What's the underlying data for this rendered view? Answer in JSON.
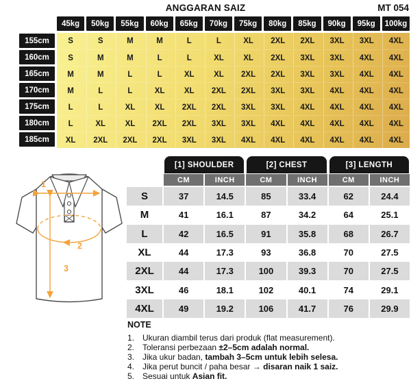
{
  "header": {
    "title": "ANGGARAN SAIZ",
    "code": "MT 054"
  },
  "colors": {
    "black_cell": "#161616",
    "gold_light": "#f9f192",
    "gold_dark": "#dcab4b",
    "unit_header_gray": "#707070",
    "row_shade_gray": "#dbdbdb",
    "annotation_orange": "#f2a33c"
  },
  "size_matrix": {
    "weight_headers": [
      "45kg",
      "50kg",
      "55kg",
      "60kg",
      "65kg",
      "70kg",
      "75kg",
      "80kg",
      "85kg",
      "90kg",
      "95kg",
      "100kg"
    ],
    "rows": [
      {
        "height": "155cm",
        "sizes": [
          "S",
          "S",
          "M",
          "M",
          "L",
          "L",
          "XL",
          "2XL",
          "2XL",
          "3XL",
          "3XL",
          "4XL"
        ]
      },
      {
        "height": "160cm",
        "sizes": [
          "S",
          "M",
          "M",
          "L",
          "L",
          "XL",
          "XL",
          "2XL",
          "3XL",
          "3XL",
          "4XL",
          "4XL"
        ]
      },
      {
        "height": "165cm",
        "sizes": [
          "M",
          "M",
          "L",
          "L",
          "XL",
          "XL",
          "2XL",
          "2XL",
          "3XL",
          "3XL",
          "4XL",
          "4XL"
        ]
      },
      {
        "height": "170cm",
        "sizes": [
          "M",
          "L",
          "L",
          "XL",
          "XL",
          "2XL",
          "2XL",
          "3XL",
          "3XL",
          "4XL",
          "4XL",
          "4XL"
        ]
      },
      {
        "height": "175cm",
        "sizes": [
          "L",
          "L",
          "XL",
          "XL",
          "2XL",
          "2XL",
          "3XL",
          "3XL",
          "4XL",
          "4XL",
          "4XL",
          "4XL"
        ]
      },
      {
        "height": "180cm",
        "sizes": [
          "L",
          "XL",
          "XL",
          "2XL",
          "2XL",
          "3XL",
          "3XL",
          "4XL",
          "4XL",
          "4XL",
          "4XL",
          "4XL"
        ]
      },
      {
        "height": "185cm",
        "sizes": [
          "XL",
          "2XL",
          "2XL",
          "2XL",
          "3XL",
          "3XL",
          "4XL",
          "4XL",
          "4XL",
          "4XL",
          "4XL",
          "4XL"
        ]
      }
    ]
  },
  "measurement_table": {
    "groups": [
      {
        "label": "[1] SHOULDER"
      },
      {
        "label": "[2] CHEST"
      },
      {
        "label": "[3] LENGTH"
      }
    ],
    "unit_headers": [
      "CM",
      "INCH",
      "CM",
      "INCH",
      "CM",
      "INCH"
    ],
    "rows": [
      {
        "size": "S",
        "values": [
          "37",
          "14.5",
          "85",
          "33.4",
          "62",
          "24.4"
        ]
      },
      {
        "size": "M",
        "values": [
          "41",
          "16.1",
          "87",
          "34.2",
          "64",
          "25.1"
        ]
      },
      {
        "size": "L",
        "values": [
          "42",
          "16.5",
          "91",
          "35.8",
          "68",
          "26.7"
        ]
      },
      {
        "size": "XL",
        "values": [
          "44",
          "17.3",
          "93",
          "36.8",
          "70",
          "27.5"
        ]
      },
      {
        "size": "2XL",
        "values": [
          "44",
          "17.3",
          "100",
          "39.3",
          "70",
          "27.5"
        ]
      },
      {
        "size": "3XL",
        "values": [
          "46",
          "18.1",
          "102",
          "40.1",
          "74",
          "29.1"
        ]
      },
      {
        "size": "4XL",
        "values": [
          "49",
          "19.2",
          "106",
          "41.7",
          "76",
          "29.9"
        ]
      }
    ]
  },
  "diagram": {
    "labels": {
      "shoulder": "1",
      "chest": "2",
      "length": "3"
    }
  },
  "note": {
    "title": "NOTE",
    "items": [
      [
        {
          "t": "Ukuran diambil terus dari produk (flat measurement).",
          "b": false
        }
      ],
      [
        {
          "t": "Toleransi perbezaan ",
          "b": false
        },
        {
          "t": "±2–5cm adalah normal.",
          "b": true
        }
      ],
      [
        {
          "t": "Jika ukur badan, ",
          "b": false
        },
        {
          "t": "tambah 3–5cm untuk lebih selesa.",
          "b": true
        }
      ],
      [
        {
          "t": "Jika perut buncit / paha besar → ",
          "b": false
        },
        {
          "t": "disaran naik 1 saiz.",
          "b": true
        }
      ],
      [
        {
          "t": "Sesuai untuk ",
          "b": false
        },
        {
          "t": "Asian fit.",
          "b": true
        }
      ]
    ]
  }
}
